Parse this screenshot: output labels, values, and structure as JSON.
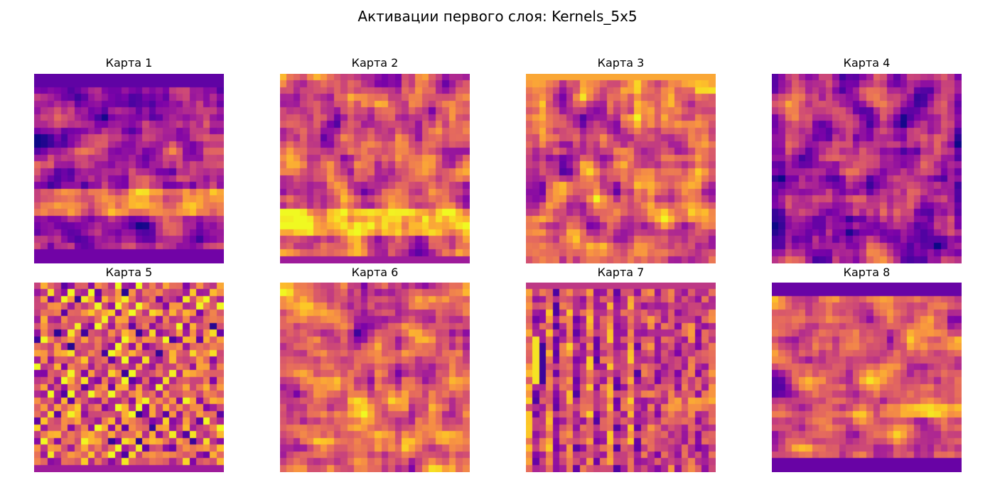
{
  "figure": {
    "title": "Активации первого слоя: Kernels_5x5"
  },
  "colormap": "plasma",
  "colors": {
    "plasma_low": "#0d0887",
    "plasma_mid": "#cc4778",
    "plasma_high": "#f0f921"
  },
  "chart_data": [
    {
      "type": "heatmap",
      "title": "Карта 1",
      "grid": "off",
      "axes": "off",
      "colormap": "plasma",
      "resolution": [
        28,
        28
      ]
    },
    {
      "type": "heatmap",
      "title": "Карта 2",
      "grid": "off",
      "axes": "off",
      "colormap": "plasma",
      "resolution": [
        28,
        28
      ]
    },
    {
      "type": "heatmap",
      "title": "Карта 3",
      "grid": "off",
      "axes": "off",
      "colormap": "plasma",
      "resolution": [
        28,
        28
      ]
    },
    {
      "type": "heatmap",
      "title": "Карта 4",
      "grid": "off",
      "axes": "off",
      "colormap": "plasma",
      "resolution": [
        28,
        28
      ]
    },
    {
      "type": "heatmap",
      "title": "Карта 5",
      "grid": "off",
      "axes": "off",
      "colormap": "plasma",
      "resolution": [
        28,
        28
      ]
    },
    {
      "type": "heatmap",
      "title": "Карта 6",
      "grid": "off",
      "axes": "off",
      "colormap": "plasma",
      "resolution": [
        28,
        28
      ]
    },
    {
      "type": "heatmap",
      "title": "Карта 7",
      "grid": "off",
      "axes": "off",
      "colormap": "plasma",
      "resolution": [
        28,
        28
      ]
    },
    {
      "type": "heatmap",
      "title": "Карта 8",
      "grid": "off",
      "axes": "off",
      "colormap": "plasma",
      "resolution": [
        28,
        28
      ]
    }
  ]
}
